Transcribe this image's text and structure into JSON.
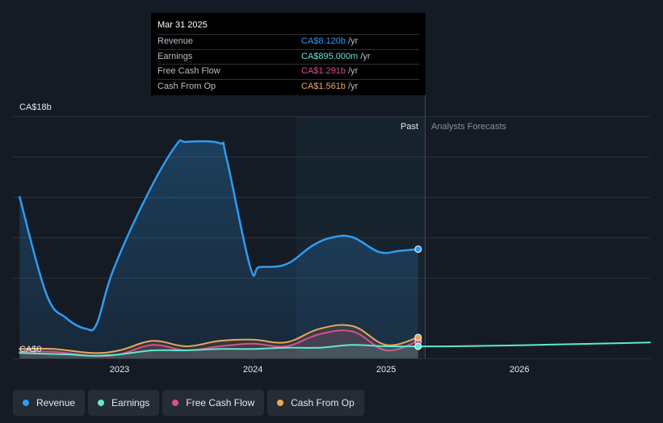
{
  "chart_data": {
    "type": "line",
    "y_axis": {
      "top_label": "CA$18b",
      "bottom_label": "CA$0",
      "ylim": [
        0,
        18
      ]
    },
    "x_axis": {
      "tick_labels": [
        "2023",
        "2024",
        "2025",
        "2026"
      ],
      "xlim": [
        2022.2,
        2026.98
      ]
    },
    "regions": {
      "past_label": "Past",
      "forecast_label": "Analysts Forecasts"
    },
    "grid": true,
    "series": [
      {
        "name": "Revenue",
        "color": "#2f9bf0",
        "x": [
          2022.25,
          2022.45,
          2022.6,
          2022.75,
          2022.83,
          2022.95,
          2023.2,
          2023.42,
          2023.5,
          2023.75,
          2023.8,
          2023.98,
          2024.05,
          2024.25,
          2024.45,
          2024.6,
          2024.75,
          2024.95,
          2025.1,
          2025.24
        ],
        "values": [
          12.0,
          4.8,
          3.0,
          2.2,
          2.6,
          6.5,
          12.0,
          15.8,
          16.1,
          16.0,
          15.0,
          6.8,
          6.8,
          7.0,
          8.4,
          9.0,
          9.0,
          7.9,
          8.0,
          8.12
        ]
      },
      {
        "name": "Earnings",
        "color": "#5ee8d0",
        "x": [
          2022.25,
          2022.6,
          2022.8,
          2023.0,
          2023.25,
          2023.5,
          2023.75,
          2024.0,
          2024.25,
          2024.5,
          2024.75,
          2025.0,
          2025.24
        ],
        "values": [
          0.4,
          0.3,
          0.2,
          0.3,
          0.6,
          0.6,
          0.7,
          0.7,
          0.8,
          0.8,
          1.0,
          0.9,
          0.895
        ]
      },
      {
        "name": "Earnings Forecast",
        "color": "#5ee8d0",
        "x": [
          2025.24,
          2025.5,
          2026.0,
          2026.5,
          2026.98
        ],
        "values": [
          0.895,
          0.9,
          0.98,
          1.08,
          1.18
        ]
      },
      {
        "name": "Free Cash Flow",
        "color": "#d94f8c",
        "x": [
          2022.25,
          2022.5,
          2022.8,
          2023.0,
          2023.25,
          2023.5,
          2023.75,
          2024.0,
          2024.25,
          2024.5,
          2024.75,
          2025.0,
          2025.24
        ],
        "values": [
          0.5,
          0.5,
          0.2,
          0.3,
          1.0,
          0.6,
          0.9,
          1.1,
          0.9,
          1.8,
          2.0,
          0.6,
          1.291
        ]
      },
      {
        "name": "Cash From Op",
        "color": "#e8a85a",
        "x": [
          2022.25,
          2022.5,
          2022.8,
          2023.0,
          2023.25,
          2023.5,
          2023.75,
          2024.0,
          2024.25,
          2024.5,
          2024.75,
          2025.0,
          2025.24
        ],
        "values": [
          0.7,
          0.7,
          0.4,
          0.6,
          1.3,
          0.9,
          1.3,
          1.4,
          1.2,
          2.2,
          2.4,
          1.0,
          1.561
        ]
      }
    ]
  },
  "tooltip": {
    "date": "Mar 31 2025",
    "rows": [
      {
        "label": "Revenue",
        "value": "CA$8.120b",
        "unit": "/yr",
        "color": "#2f9bf0"
      },
      {
        "label": "Earnings",
        "value": "CA$895.000m",
        "unit": "/yr",
        "color": "#5ee8d0"
      },
      {
        "label": "Free Cash Flow",
        "value": "CA$1.291b",
        "unit": "/yr",
        "color": "#d94f8c"
      },
      {
        "label": "Cash From Op",
        "value": "CA$1.561b",
        "unit": "/yr",
        "color": "#e8a85a"
      }
    ]
  },
  "legend": [
    {
      "label": "Revenue",
      "color": "#2f9bf0"
    },
    {
      "label": "Earnings",
      "color": "#5ee8d0"
    },
    {
      "label": "Free Cash Flow",
      "color": "#d94f8c"
    },
    {
      "label": "Cash From Op",
      "color": "#e8a85a"
    }
  ]
}
